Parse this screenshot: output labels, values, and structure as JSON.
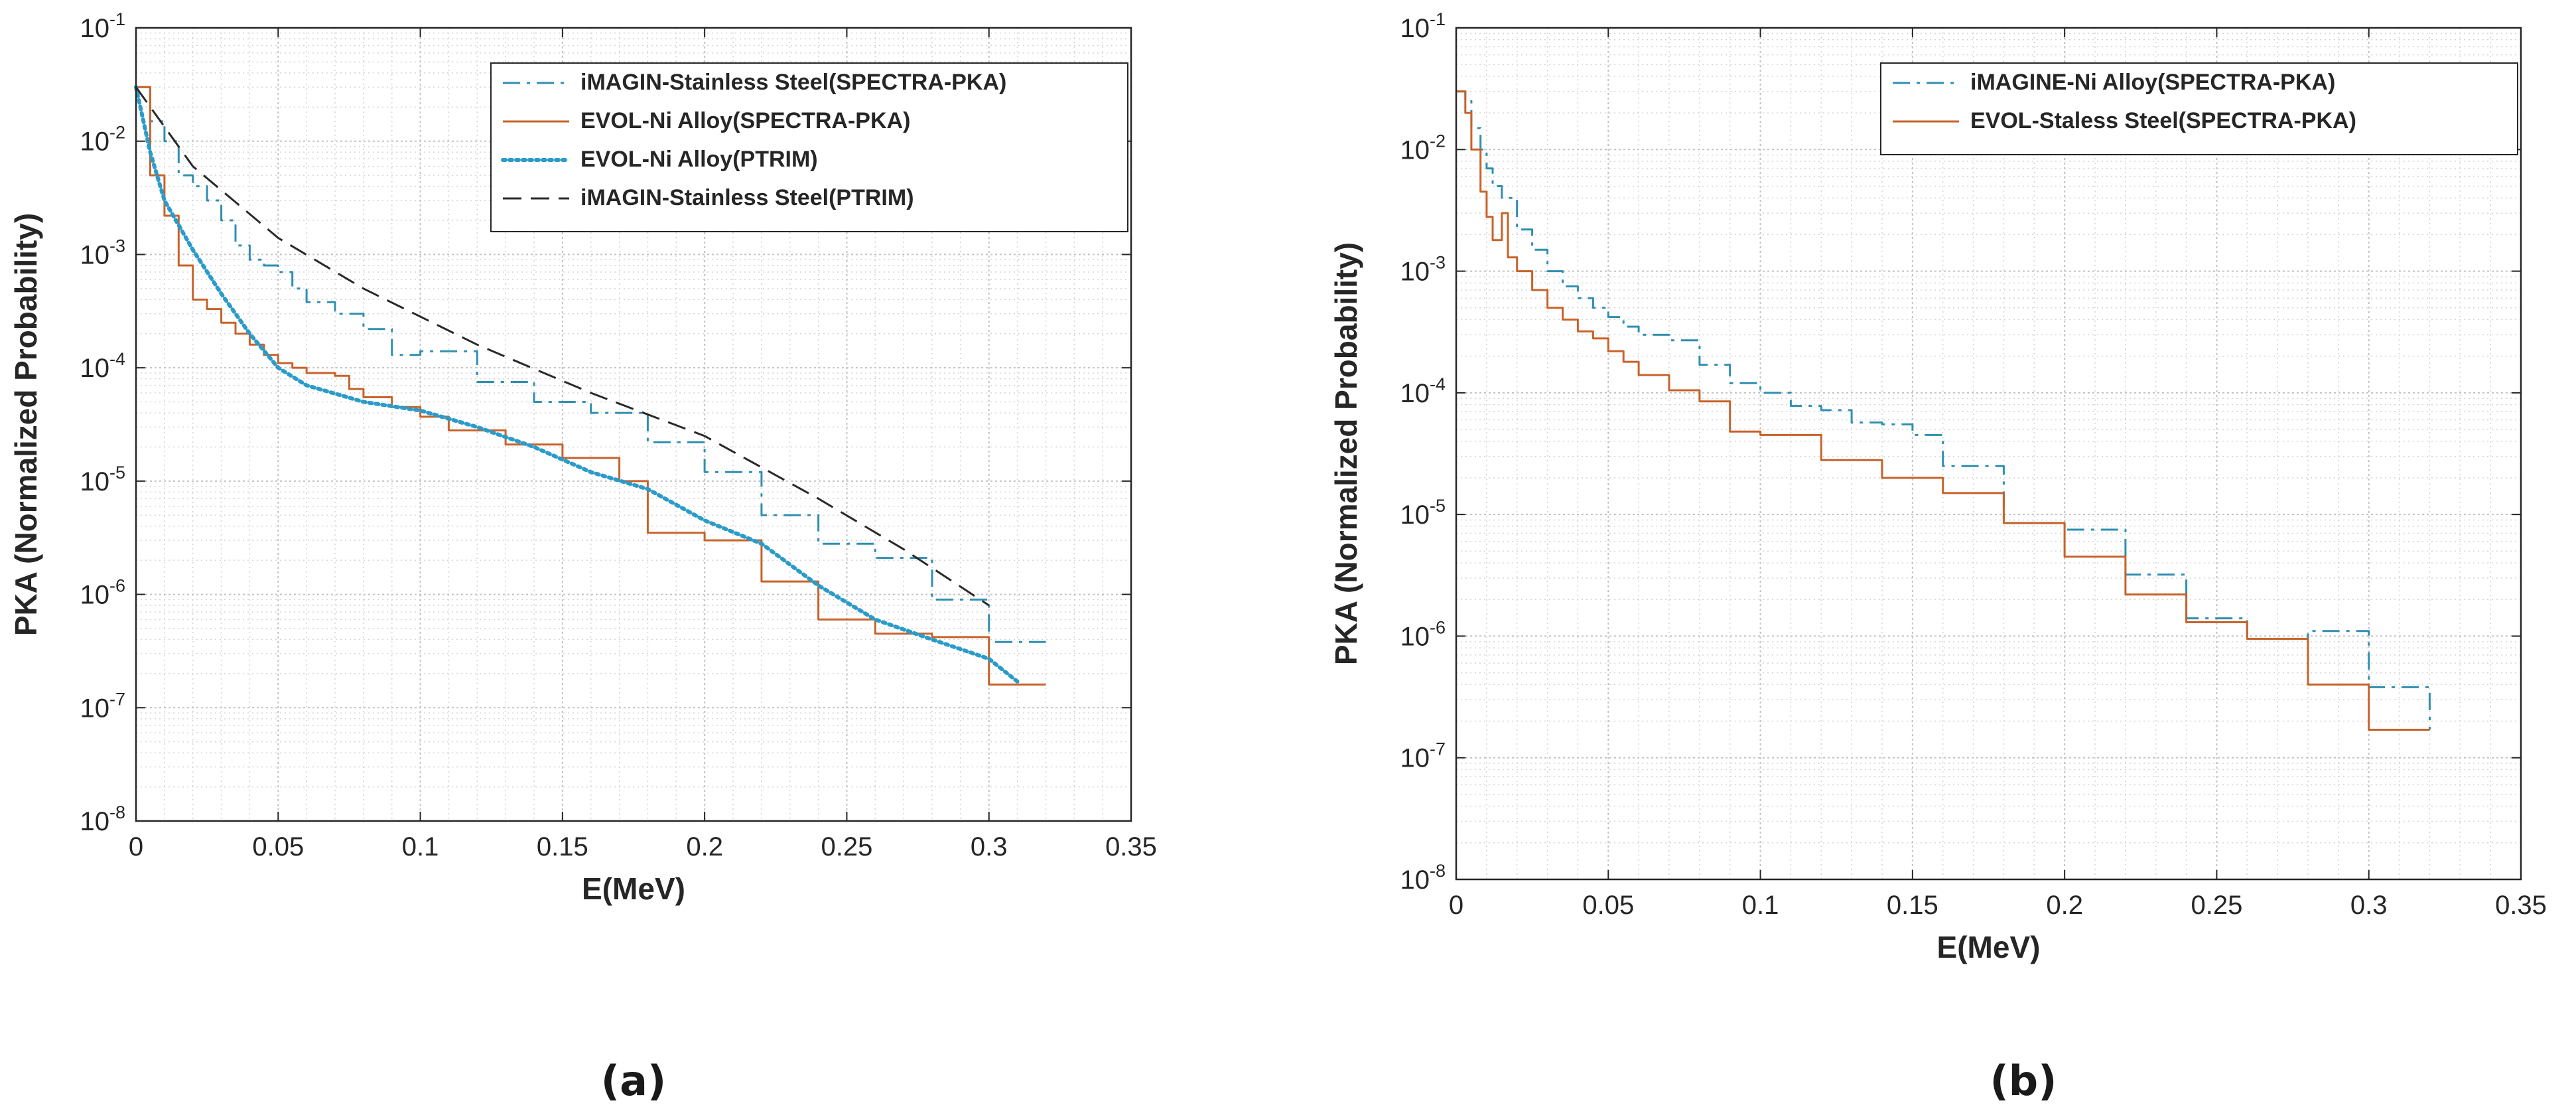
{
  "chart_data": [
    {
      "panel_label": "(a)",
      "type": "line",
      "xlabel": "E(MeV)",
      "ylabel": "PKA (Normalized Probability)",
      "xlim": [
        0,
        0.35
      ],
      "ylim_log10": [
        -8,
        -1
      ],
      "x_ticks": [
        "0",
        "0.05",
        "0.1",
        "0.15",
        "0.2",
        "0.25",
        "0.3",
        "0.35"
      ],
      "x_tick_values": [
        0,
        0.05,
        0.1,
        0.15,
        0.2,
        0.25,
        0.3,
        0.35
      ],
      "y_ticks": [
        {
          "base": "10",
          "exp": "-8",
          "value": 1e-08
        },
        {
          "base": "10",
          "exp": "-7",
          "value": 1e-07
        },
        {
          "base": "10",
          "exp": "-6",
          "value": 1e-06
        },
        {
          "base": "10",
          "exp": "-5",
          "value": 1e-05
        },
        {
          "base": "10",
          "exp": "-4",
          "value": 0.0001
        },
        {
          "base": "10",
          "exp": "-3",
          "value": 0.001
        },
        {
          "base": "10",
          "exp": "-2",
          "value": 0.01
        },
        {
          "base": "10",
          "exp": "-1",
          "value": 0.1
        }
      ],
      "grid": true,
      "minor_grid": true,
      "legend_placement": "top-right",
      "series": [
        {
          "name": "iMAGIN-Stainless Steel(SPECTRA-PKA)",
          "color": "#2f8fb0",
          "style": "dashdot",
          "step": true,
          "points": [
            [
              0,
              0.03
            ],
            [
              0.005,
              0.015
            ],
            [
              0.01,
              0.01
            ],
            [
              0.015,
              0.005
            ],
            [
              0.02,
              0.004
            ],
            [
              0.025,
              0.003
            ],
            [
              0.03,
              0.002
            ],
            [
              0.035,
              0.0012
            ],
            [
              0.04,
              0.0009
            ],
            [
              0.045,
              0.0008
            ],
            [
              0.05,
              0.0007
            ],
            [
              0.055,
              0.0005
            ],
            [
              0.06,
              0.00038
            ],
            [
              0.07,
              0.0003
            ],
            [
              0.08,
              0.00022
            ],
            [
              0.09,
              0.00013
            ],
            [
              0.1,
              0.00014
            ],
            [
              0.12,
              7.5e-05
            ],
            [
              0.14,
              5e-05
            ],
            [
              0.16,
              4e-05
            ],
            [
              0.18,
              2.2e-05
            ],
            [
              0.2,
              1.2e-05
            ],
            [
              0.22,
              5e-06
            ],
            [
              0.24,
              2.8e-06
            ],
            [
              0.26,
              2.1e-06
            ],
            [
              0.28,
              9e-07
            ],
            [
              0.3,
              3.8e-07
            ],
            [
              0.32,
              3.8e-07
            ]
          ]
        },
        {
          "name": "EVOL-Ni Alloy(SPECTRA-PKA)",
          "color": "#c8622a",
          "style": "solid",
          "step": true,
          "points": [
            [
              0,
              0.03
            ],
            [
              0.005,
              0.005
            ],
            [
              0.01,
              0.0022
            ],
            [
              0.015,
              0.0008
            ],
            [
              0.02,
              0.0004
            ],
            [
              0.025,
              0.00033
            ],
            [
              0.03,
              0.00025
            ],
            [
              0.035,
              0.0002
            ],
            [
              0.04,
              0.00016
            ],
            [
              0.045,
              0.00013
            ],
            [
              0.05,
              0.00011
            ],
            [
              0.055,
              0.0001
            ],
            [
              0.06,
              9e-05
            ],
            [
              0.07,
              8.5e-05
            ],
            [
              0.075,
              6.5e-05
            ],
            [
              0.08,
              5.5e-05
            ],
            [
              0.09,
              4.5e-05
            ],
            [
              0.1,
              3.7e-05
            ],
            [
              0.11,
              2.8e-05
            ],
            [
              0.13,
              2.1e-05
            ],
            [
              0.15,
              1.6e-05
            ],
            [
              0.17,
              1e-05
            ],
            [
              0.18,
              3.5e-06
            ],
            [
              0.2,
              3e-06
            ],
            [
              0.22,
              1.3e-06
            ],
            [
              0.24,
              6e-07
            ],
            [
              0.26,
              4.5e-07
            ],
            [
              0.28,
              4.2e-07
            ],
            [
              0.3,
              1.6e-07
            ],
            [
              0.32,
              1.6e-07
            ]
          ]
        },
        {
          "name": "EVOL-Ni Alloy(PTRIM)",
          "color": "#2b9bc9",
          "style": "dotted",
          "step": false,
          "points": [
            [
              0,
              0.03
            ],
            [
              0.005,
              0.008
            ],
            [
              0.01,
              0.003
            ],
            [
              0.02,
              0.0011
            ],
            [
              0.03,
              0.00045
            ],
            [
              0.04,
              0.0002
            ],
            [
              0.05,
              0.0001
            ],
            [
              0.06,
              7e-05
            ],
            [
              0.08,
              5e-05
            ],
            [
              0.1,
              4.2e-05
            ],
            [
              0.12,
              3e-05
            ],
            [
              0.14,
              2e-05
            ],
            [
              0.16,
              1.2e-05
            ],
            [
              0.18,
              8.5e-06
            ],
            [
              0.2,
              4.5e-06
            ],
            [
              0.22,
              2.8e-06
            ],
            [
              0.24,
              1.2e-06
            ],
            [
              0.26,
              6e-07
            ],
            [
              0.28,
              4e-07
            ],
            [
              0.3,
              2.7e-07
            ],
            [
              0.31,
              1.7e-07
            ]
          ]
        },
        {
          "name": "iMAGIN-Stainless Steel(PTRIM)",
          "color": "#2a2a2a",
          "style": "dashed",
          "step": false,
          "points": [
            [
              0,
              0.03
            ],
            [
              0.02,
              0.006
            ],
            [
              0.05,
              0.0014
            ],
            [
              0.08,
              0.0005
            ],
            [
              0.12,
              0.00016
            ],
            [
              0.16,
              6e-05
            ],
            [
              0.2,
              2.5e-05
            ],
            [
              0.24,
              7e-06
            ],
            [
              0.27,
              2.5e-06
            ],
            [
              0.3,
              8e-07
            ]
          ]
        }
      ]
    },
    {
      "panel_label": "(b)",
      "type": "line",
      "xlabel": "E(MeV)",
      "ylabel": "PKA (Normalized Probability)",
      "xlim": [
        0,
        0.35
      ],
      "ylim_log10": [
        -8,
        -1
      ],
      "x_ticks": [
        "0",
        "0.05",
        "0.1",
        "0.15",
        "0.2",
        "0.25",
        "0.3",
        "0.35"
      ],
      "x_tick_values": [
        0,
        0.05,
        0.1,
        0.15,
        0.2,
        0.25,
        0.3,
        0.35
      ],
      "y_ticks": [
        {
          "base": "10",
          "exp": "-8",
          "value": 1e-08
        },
        {
          "base": "10",
          "exp": "-7",
          "value": 1e-07
        },
        {
          "base": "10",
          "exp": "-6",
          "value": 1e-06
        },
        {
          "base": "10",
          "exp": "-5",
          "value": 1e-05
        },
        {
          "base": "10",
          "exp": "-4",
          "value": 0.0001
        },
        {
          "base": "10",
          "exp": "-3",
          "value": 0.001
        },
        {
          "base": "10",
          "exp": "-2",
          "value": 0.01
        },
        {
          "base": "10",
          "exp": "-1",
          "value": 0.1
        }
      ],
      "grid": true,
      "minor_grid": true,
      "legend_placement": "top-right",
      "series": [
        {
          "name": "iMAGINE-Ni Alloy(SPECTRA-PKA)",
          "color": "#2f8fb0",
          "style": "dashdot",
          "step": true,
          "points": [
            [
              0,
              0.03
            ],
            [
              0.003,
              0.025
            ],
            [
              0.005,
              0.015
            ],
            [
              0.008,
              0.01
            ],
            [
              0.01,
              0.007
            ],
            [
              0.012,
              0.005
            ],
            [
              0.015,
              0.004
            ],
            [
              0.02,
              0.0022
            ],
            [
              0.025,
              0.0015
            ],
            [
              0.03,
              0.001
            ],
            [
              0.035,
              0.00075
            ],
            [
              0.04,
              0.0006
            ],
            [
              0.045,
              0.0005
            ],
            [
              0.05,
              0.00042
            ],
            [
              0.055,
              0.00035
            ],
            [
              0.06,
              0.0003
            ],
            [
              0.07,
              0.00027
            ],
            [
              0.08,
              0.00017
            ],
            [
              0.09,
              0.00012
            ],
            [
              0.1,
              0.0001
            ],
            [
              0.11,
              7.8e-05
            ],
            [
              0.12,
              7.2e-05
            ],
            [
              0.13,
              5.7e-05
            ],
            [
              0.14,
              5.5e-05
            ],
            [
              0.15,
              4.5e-05
            ],
            [
              0.16,
              2.5e-05
            ],
            [
              0.18,
              8.5e-06
            ],
            [
              0.2,
              7.5e-06
            ],
            [
              0.22,
              3.2e-06
            ],
            [
              0.24,
              1.4e-06
            ],
            [
              0.26,
              9.5e-07
            ],
            [
              0.28,
              1.1e-06
            ],
            [
              0.3,
              3.8e-07
            ],
            [
              0.32,
              1.7e-07
            ]
          ]
        },
        {
          "name": "EVOL-Staless Steel(SPECTRA-PKA)",
          "color": "#c8622a",
          "style": "solid",
          "step": true,
          "points": [
            [
              0,
              0.03
            ],
            [
              0.003,
              0.02
            ],
            [
              0.005,
              0.01
            ],
            [
              0.008,
              0.0045
            ],
            [
              0.01,
              0.0028
            ],
            [
              0.012,
              0.0018
            ],
            [
              0.015,
              0.003
            ],
            [
              0.017,
              0.0013
            ],
            [
              0.02,
              0.001
            ],
            [
              0.025,
              0.0007
            ],
            [
              0.03,
              0.0005
            ],
            [
              0.035,
              0.0004
            ],
            [
              0.04,
              0.00032
            ],
            [
              0.045,
              0.00028
            ],
            [
              0.05,
              0.00022
            ],
            [
              0.055,
              0.00018
            ],
            [
              0.06,
              0.00014
            ],
            [
              0.07,
              0.000105
            ],
            [
              0.08,
              8.5e-05
            ],
            [
              0.09,
              4.8e-05
            ],
            [
              0.1,
              4.5e-05
            ],
            [
              0.12,
              2.8e-05
            ],
            [
              0.14,
              2e-05
            ],
            [
              0.16,
              1.5e-05
            ],
            [
              0.18,
              8.5e-06
            ],
            [
              0.2,
              4.5e-06
            ],
            [
              0.22,
              2.2e-06
            ],
            [
              0.24,
              1.3e-06
            ],
            [
              0.26,
              9.5e-07
            ],
            [
              0.28,
              4e-07
            ],
            [
              0.3,
              1.7e-07
            ],
            [
              0.32,
              1.7e-07
            ]
          ]
        }
      ]
    }
  ]
}
